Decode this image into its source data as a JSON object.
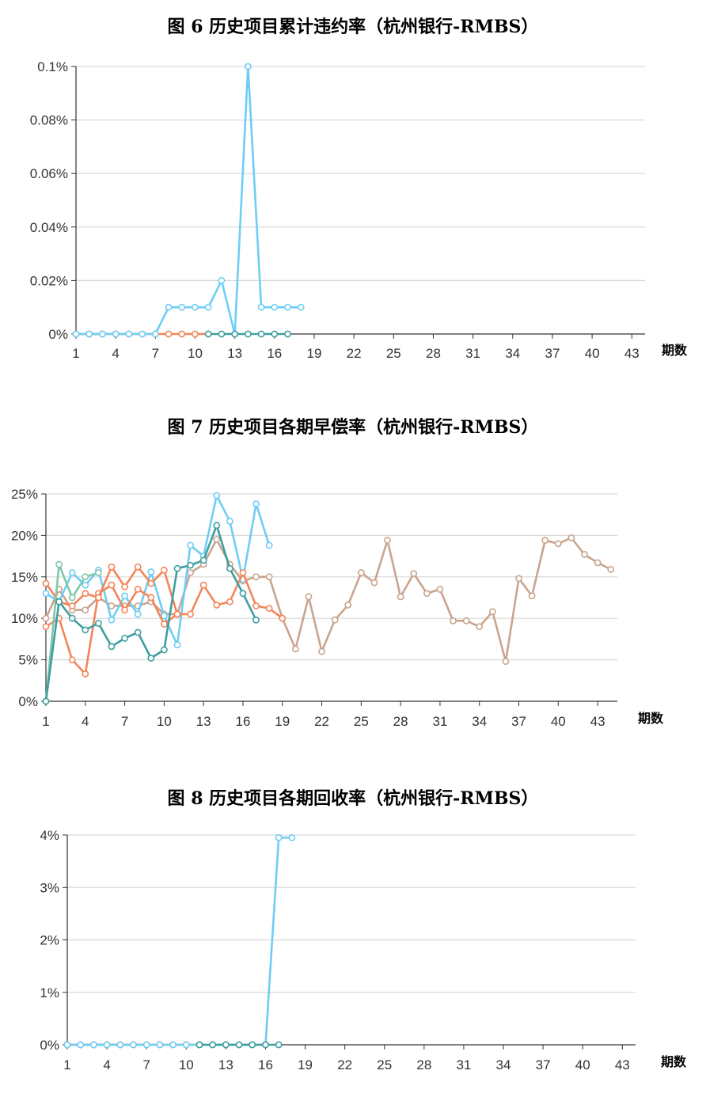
{
  "chart_data": [
    {
      "type": "line",
      "title": "图 6 历史项目累计违约率（杭州银行-RMBS）",
      "xlabel": "期数",
      "ylabel": "",
      "x_ticks": [
        1,
        4,
        7,
        10,
        13,
        16,
        19,
        22,
        25,
        28,
        31,
        34,
        37,
        40,
        43
      ],
      "y_ticks": [
        "0%",
        "0.02%",
        "0.04%",
        "0.06%",
        "0.08%",
        "0.1%"
      ],
      "xlim": [
        1,
        44
      ],
      "ylim": [
        0,
        0.1
      ],
      "grid": "horizontal",
      "series": [
        {
          "color": "#f0a868",
          "x": [
            1
          ],
          "values": [
            0
          ]
        },
        {
          "color": "#7fc8a9",
          "x": [
            1,
            2,
            3,
            4,
            5
          ],
          "values": [
            0,
            0,
            0,
            0,
            0
          ]
        },
        {
          "color": "#f4855a",
          "x": [
            1,
            2,
            3,
            4,
            5,
            6,
            7,
            8,
            9,
            10,
            11
          ],
          "values": [
            0,
            0,
            0,
            0,
            0,
            0,
            0,
            0,
            0,
            0,
            0
          ]
        },
        {
          "color": "#6fcdf5",
          "x": [
            1,
            2,
            3,
            4,
            5,
            6,
            7,
            8,
            9,
            10,
            11,
            12,
            13,
            14,
            15,
            16,
            17,
            18
          ],
          "values": [
            0,
            0,
            0,
            0,
            0,
            0,
            0,
            0.01,
            0.01,
            0.01,
            0.01,
            0.02,
            0,
            0.1,
            0.01,
            0.01,
            0.01,
            0.01
          ]
        },
        {
          "color": "#3f9ea0",
          "x": [
            11,
            12,
            13,
            14,
            15,
            16,
            17
          ],
          "values": [
            0,
            0,
            0,
            0,
            0,
            0,
            0
          ]
        }
      ]
    },
    {
      "type": "line",
      "title": "图 7 历史项目各期早偿率（杭州银行-RMBS）",
      "xlabel": "期数",
      "ylabel": "",
      "x_ticks": [
        1,
        4,
        7,
        10,
        13,
        16,
        19,
        22,
        25,
        28,
        31,
        34,
        37,
        40,
        43
      ],
      "y_ticks": [
        "0%",
        "5%",
        "10%",
        "15%",
        "20%",
        "25%"
      ],
      "xlim": [
        1,
        44.5
      ],
      "ylim": [
        0,
        25
      ],
      "grid": "horizontal",
      "series": [
        {
          "color": "#c9a48e",
          "x": [
            1,
            2,
            3,
            4,
            5,
            6,
            7,
            8,
            9,
            10,
            11,
            12,
            13,
            14,
            15,
            16,
            17,
            18,
            19,
            20,
            21,
            22,
            23,
            24,
            25,
            26,
            27,
            28,
            29,
            30,
            31,
            32,
            33,
            34,
            35,
            36,
            37,
            38,
            39,
            40,
            41,
            42,
            43,
            44
          ],
          "values": [
            10,
            13.5,
            11,
            11,
            12.5,
            11.5,
            11.5,
            11.5,
            12,
            10.5,
            10.5,
            15.5,
            16.5,
            19.5,
            16.5,
            14.5,
            15,
            15,
            10,
            6.3,
            12.6,
            6,
            9.8,
            11.6,
            15.5,
            14.3,
            19.4,
            12.6,
            15.4,
            13,
            13.5,
            9.7,
            9.7,
            9,
            10.8,
            4.8,
            14.8,
            12.7,
            19.4,
            19,
            19.7,
            17.7,
            16.7,
            15.9
          ]
        },
        {
          "color": "#6fcdf5",
          "x": [
            1,
            2,
            3,
            4,
            5,
            6,
            7,
            8,
            9,
            10,
            11,
            12,
            13,
            14,
            15,
            16,
            17,
            18
          ],
          "values": [
            13,
            12,
            15.5,
            14,
            15.8,
            9.8,
            12.7,
            10.5,
            15.6,
            10.3,
            6.8,
            18.8,
            17.5,
            24.8,
            21.7,
            14.7,
            23.8,
            18.8
          ]
        },
        {
          "color": "#f4855a",
          "x": [
            1,
            2,
            3,
            4,
            5,
            6,
            7,
            8,
            9,
            10,
            11,
            12,
            13,
            14,
            15,
            16,
            17,
            18,
            19
          ],
          "values": [
            9,
            10,
            5,
            3.3,
            13,
            14,
            11,
            13.5,
            12.5,
            9.3,
            10.5,
            10.5,
            14,
            11.6,
            12,
            15.5,
            11.5,
            11.2,
            10
          ]
        },
        {
          "color": "#f4855a",
          "x": [
            1,
            2,
            3,
            4,
            5,
            6,
            7,
            8,
            9,
            10,
            11
          ],
          "values": [
            14.2,
            12,
            11.5,
            13,
            12.5,
            16.2,
            13.8,
            16.2,
            14.2,
            15.8,
            10.5
          ]
        },
        {
          "color": "#7fc8a9",
          "x": [
            1,
            2,
            3,
            4,
            5
          ],
          "values": [
            0,
            16.5,
            12.5,
            15,
            15.5
          ]
        },
        {
          "color": "#3f9ea0",
          "x": [
            1,
            2,
            3,
            4,
            5,
            6,
            7,
            8,
            9,
            10,
            11,
            12,
            13,
            14,
            15,
            16,
            17
          ],
          "values": [
            0,
            12,
            10,
            8.6,
            9.4,
            6.6,
            7.6,
            8.3,
            5.2,
            6.2,
            16,
            16.4,
            17,
            21.2,
            16,
            13,
            9.8
          ]
        }
      ]
    },
    {
      "type": "line",
      "title": "图 8 历史项目各期回收率（杭州银行-RMBS）",
      "xlabel": "期数",
      "ylabel": "",
      "x_ticks": [
        1,
        4,
        7,
        10,
        13,
        16,
        19,
        22,
        25,
        28,
        31,
        34,
        37,
        40,
        43
      ],
      "y_ticks": [
        "0%",
        "1%",
        "2%",
        "3%",
        "4%"
      ],
      "xlim": [
        1,
        44
      ],
      "ylim": [
        0,
        4
      ],
      "grid": "horizontal",
      "series": [
        {
          "color": "#f0a868",
          "x": [
            1
          ],
          "values": [
            0
          ]
        },
        {
          "color": "#7fc8a9",
          "x": [
            1,
            2,
            3,
            4,
            5
          ],
          "values": [
            0,
            0,
            0,
            0,
            0
          ]
        },
        {
          "color": "#f4855a",
          "x": [
            1,
            2,
            3,
            4,
            5,
            6,
            7,
            8,
            9,
            10,
            11
          ],
          "values": [
            0,
            0,
            0,
            0,
            0,
            0,
            0,
            0,
            0,
            0,
            0
          ]
        },
        {
          "color": "#6fcdf5",
          "x": [
            1,
            2,
            3,
            4,
            5,
            6,
            7,
            8,
            9,
            10,
            11,
            12,
            13,
            14,
            15,
            16,
            17,
            18
          ],
          "values": [
            0,
            0,
            0,
            0,
            0,
            0,
            0,
            0,
            0,
            0,
            0,
            0,
            0,
            0,
            0,
            0,
            3.95,
            3.95
          ]
        },
        {
          "color": "#3f9ea0",
          "x": [
            11,
            12,
            13,
            14,
            15,
            16,
            17
          ],
          "values": [
            0,
            0,
            0,
            0,
            0,
            0,
            0
          ]
        }
      ]
    }
  ]
}
